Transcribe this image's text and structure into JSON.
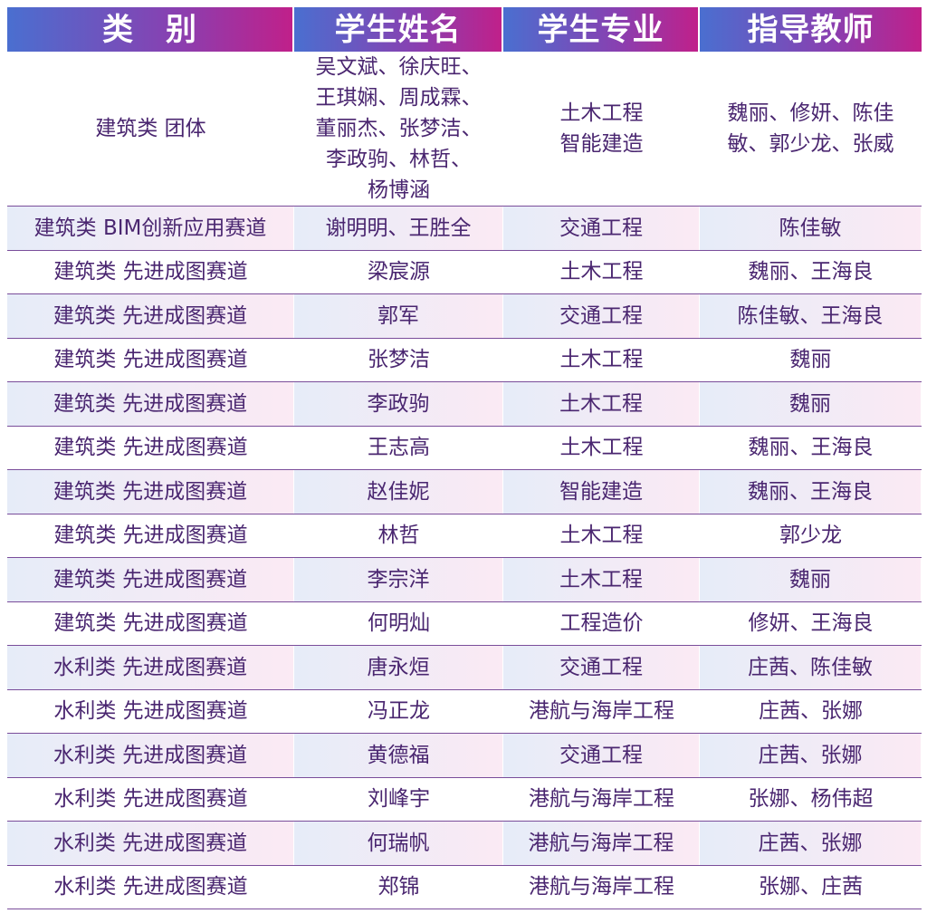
{
  "headers": [
    "类　别",
    "学生姓名",
    "学生专业",
    "指导教师"
  ],
  "rows": [
    {
      "category": "建筑类 团体",
      "students": [
        "吴文斌、徐庆旺、",
        "王琪娴、周成霖、",
        "董丽杰、张梦洁、",
        "李政驹、林哲、",
        "杨博涵"
      ],
      "majors": [
        "土木工程",
        "智能建造"
      ],
      "teachers": [
        "魏丽、修妍、陈佳",
        "敏、郭少龙、张威"
      ]
    },
    {
      "category": "建筑类 BIM创新应用赛道",
      "students": "谢明明、王胜全",
      "majors": "交通工程",
      "teachers": "陈佳敏"
    },
    {
      "category": "建筑类 先进成图赛道",
      "students": "梁宸源",
      "majors": "土木工程",
      "teachers": "魏丽、王海良"
    },
    {
      "category": "建筑类 先进成图赛道",
      "students": "郭军",
      "majors": "交通工程",
      "teachers": "陈佳敏、王海良"
    },
    {
      "category": "建筑类 先进成图赛道",
      "students": "张梦洁",
      "majors": "土木工程",
      "teachers": "魏丽"
    },
    {
      "category": "建筑类 先进成图赛道",
      "students": "李政驹",
      "majors": "土木工程",
      "teachers": "魏丽"
    },
    {
      "category": "建筑类 先进成图赛道",
      "students": "王志高",
      "majors": "土木工程",
      "teachers": "魏丽、王海良"
    },
    {
      "category": "建筑类 先进成图赛道",
      "students": "赵佳妮",
      "majors": "智能建造",
      "teachers": "魏丽、王海良"
    },
    {
      "category": "建筑类 先进成图赛道",
      "students": "林哲",
      "majors": "土木工程",
      "teachers": "郭少龙"
    },
    {
      "category": "建筑类 先进成图赛道",
      "students": "李宗洋",
      "majors": "土木工程",
      "teachers": "魏丽"
    },
    {
      "category": "建筑类 先进成图赛道",
      "students": "何明灿",
      "majors": "工程造价",
      "teachers": "修妍、王海良"
    },
    {
      "category": "水利类 先进成图赛道",
      "students": "唐永烜",
      "majors": "交通工程",
      "teachers": "庄茜、陈佳敏"
    },
    {
      "category": "水利类 先进成图赛道",
      "students": "冯正龙",
      "majors": "港航与海岸工程",
      "teachers": "庄茜、张娜"
    },
    {
      "category": "水利类 先进成图赛道",
      "students": "黄德福",
      "majors": "交通工程",
      "teachers": "庄茜、张娜"
    },
    {
      "category": "水利类 先进成图赛道",
      "students": "刘峰宇",
      "majors": "港航与海岸工程",
      "teachers": "张娜、杨伟超"
    },
    {
      "category": "水利类 先进成图赛道",
      "students": "何瑞帆",
      "majors": "港航与海岸工程",
      "teachers": "庄茜、张娜"
    },
    {
      "category": "水利类 先进成图赛道",
      "students": "郑锦",
      "majors": "港航与海岸工程",
      "teachers": "张娜、庄茜"
    }
  ]
}
